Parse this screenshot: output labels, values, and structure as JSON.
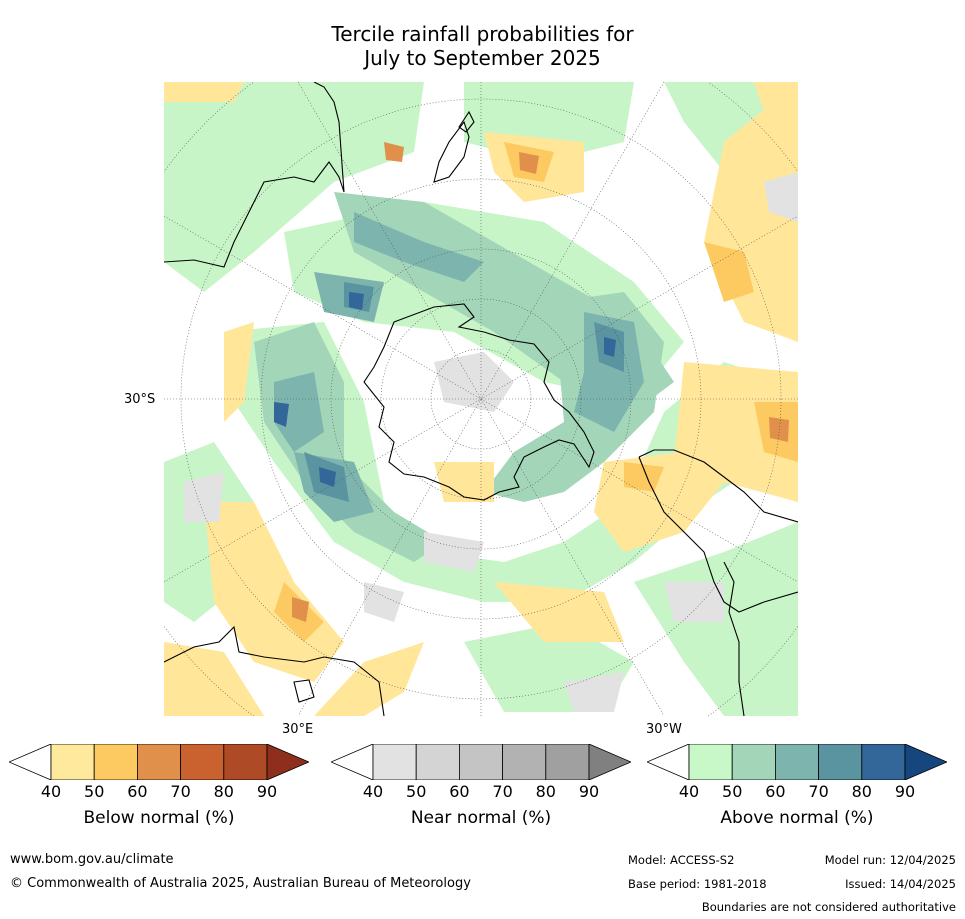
{
  "title": {
    "line1": "Tercile rainfall probabilities for",
    "line2": "July to September 2025"
  },
  "map": {
    "projection": "south polar stereographic",
    "lat_label": "30°S",
    "lon_label_east": "30°E",
    "lon_label_west": "30°W",
    "colors": {
      "above_50": "#c8f5c8",
      "above_60": "#a3d6b8",
      "above_70": "#7db5ae",
      "above_80": "#5a94a0",
      "above_90": "#336699",
      "below_50": "#ffe699",
      "below_60": "#fdca62",
      "below_70": "#e0904a",
      "near": "#e2e2e2",
      "coast": "#000000"
    }
  },
  "colorbars": [
    {
      "id": "below",
      "title": "Below normal (%)",
      "ticks": [
        "40",
        "50",
        "60",
        "70",
        "80",
        "90"
      ],
      "colors": [
        "#fee99d",
        "#fdca62",
        "#e0904a",
        "#c9622f",
        "#ae4a26",
        "#8e2e1c"
      ]
    },
    {
      "id": "near",
      "title": "Near normal (%)",
      "ticks": [
        "40",
        "50",
        "60",
        "70",
        "80",
        "90"
      ],
      "colors": [
        "#e2e2e2",
        "#d4d4d4",
        "#c4c4c4",
        "#b2b2b2",
        "#a0a0a0",
        "#808080"
      ]
    },
    {
      "id": "above",
      "title": "Above normal (%)",
      "ticks": [
        "40",
        "50",
        "60",
        "70",
        "80",
        "90"
      ],
      "colors": [
        "#c8f7c8",
        "#a3d6b8",
        "#7db5ae",
        "#5a94a0",
        "#336699",
        "#15477e"
      ]
    }
  ],
  "footer": {
    "website": "www.bom.gov.au/climate",
    "copyright": "© Commonwealth of Australia 2025, Australian Bureau of Meteorology",
    "model": "Model: ACCESS-S2",
    "model_run": "Model run: 12/04/2025",
    "base_period": "Base period: 1981-2018",
    "issued": "Issued: 14/04/2025",
    "disclaimer": "Boundaries are not considered authoritative"
  }
}
